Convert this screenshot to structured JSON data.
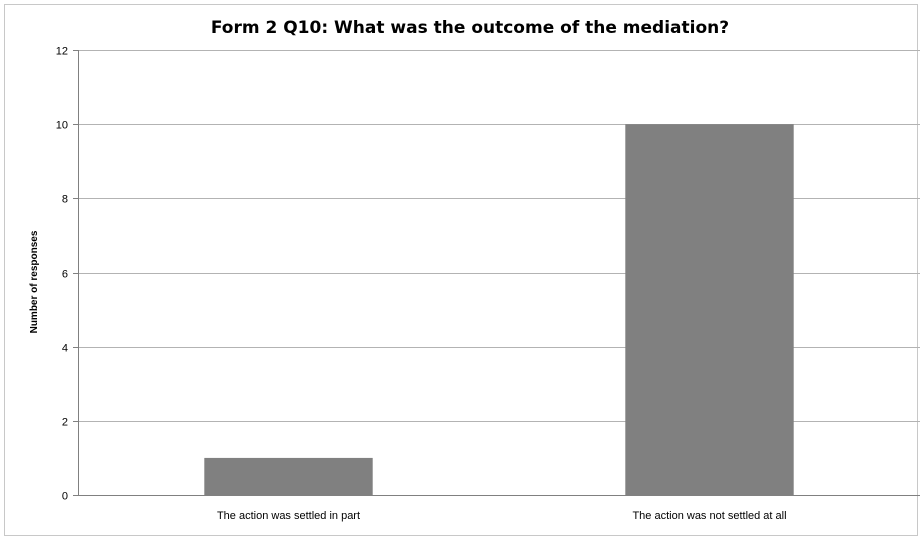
{
  "chart_data": {
    "type": "bar",
    "title": "Form 2 Q10: What was the outcome of the mediation?",
    "xlabel": "",
    "ylabel": "Number of responses",
    "categories": [
      "The action was settled in part",
      "The action was not settled at all"
    ],
    "values": [
      1,
      10
    ],
    "ylim": [
      0,
      12
    ],
    "yticks": [
      "0",
      "2",
      "4",
      "6",
      "8",
      "10",
      "12"
    ],
    "grid": "horizontal",
    "legend": "none",
    "bar_color": "#808080",
    "grid_color": "#b3b3b3"
  }
}
